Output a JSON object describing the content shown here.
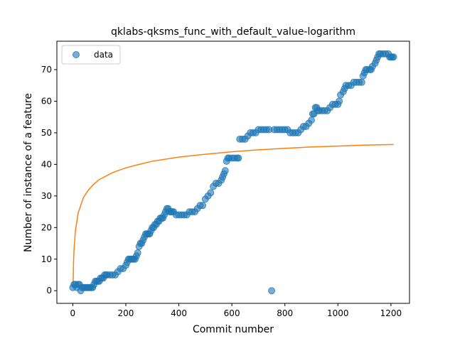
{
  "chart_data": {
    "type": "scatter",
    "title": "qklabs-qksms_func_with_default_value-logarithm",
    "xlabel": "Commit number",
    "ylabel": "Number of instance of a feature",
    "xlim": [
      -60,
      1270
    ],
    "ylim": [
      -4,
      79
    ],
    "xticks": [
      0,
      200,
      400,
      600,
      800,
      1000,
      1200
    ],
    "yticks": [
      0,
      10,
      20,
      30,
      40,
      50,
      60,
      70
    ],
    "legend": {
      "position": "top-left",
      "entries": [
        "data"
      ]
    },
    "series": [
      {
        "name": "data",
        "kind": "scatter",
        "color": "#1f77b4",
        "points": [
          [
            0,
            1
          ],
          [
            5,
            2
          ],
          [
            10,
            2
          ],
          [
            15,
            1
          ],
          [
            20,
            2
          ],
          [
            25,
            2
          ],
          [
            30,
            0
          ],
          [
            35,
            1
          ],
          [
            40,
            1
          ],
          [
            45,
            1
          ],
          [
            50,
            1
          ],
          [
            55,
            1
          ],
          [
            60,
            1
          ],
          [
            65,
            1
          ],
          [
            70,
            1
          ],
          [
            75,
            1
          ],
          [
            80,
            2
          ],
          [
            85,
            3
          ],
          [
            90,
            3
          ],
          [
            95,
            3
          ],
          [
            100,
            3
          ],
          [
            105,
            4
          ],
          [
            110,
            4
          ],
          [
            115,
            4
          ],
          [
            120,
            5
          ],
          [
            125,
            5
          ],
          [
            130,
            5
          ],
          [
            140,
            5
          ],
          [
            150,
            5
          ],
          [
            160,
            5
          ],
          [
            170,
            6
          ],
          [
            180,
            7
          ],
          [
            190,
            7
          ],
          [
            200,
            8
          ],
          [
            205,
            9
          ],
          [
            210,
            10
          ],
          [
            215,
            10
          ],
          [
            220,
            10
          ],
          [
            225,
            10
          ],
          [
            230,
            10
          ],
          [
            235,
            10
          ],
          [
            240,
            11
          ],
          [
            245,
            12
          ],
          [
            250,
            14
          ],
          [
            255,
            15
          ],
          [
            260,
            15
          ],
          [
            265,
            16
          ],
          [
            270,
            17
          ],
          [
            275,
            18
          ],
          [
            280,
            18
          ],
          [
            285,
            18
          ],
          [
            290,
            18
          ],
          [
            295,
            19
          ],
          [
            300,
            20
          ],
          [
            305,
            20
          ],
          [
            310,
            21
          ],
          [
            315,
            21
          ],
          [
            320,
            22
          ],
          [
            325,
            22
          ],
          [
            330,
            23
          ],
          [
            335,
            23
          ],
          [
            340,
            23
          ],
          [
            345,
            24
          ],
          [
            350,
            25
          ],
          [
            355,
            26
          ],
          [
            360,
            26
          ],
          [
            365,
            25
          ],
          [
            370,
            25
          ],
          [
            375,
            25
          ],
          [
            380,
            25
          ],
          [
            390,
            24
          ],
          [
            400,
            24
          ],
          [
            410,
            24
          ],
          [
            420,
            24
          ],
          [
            430,
            24
          ],
          [
            440,
            25
          ],
          [
            450,
            25
          ],
          [
            460,
            25
          ],
          [
            470,
            26
          ],
          [
            480,
            27
          ],
          [
            490,
            27
          ],
          [
            500,
            29
          ],
          [
            510,
            30
          ],
          [
            520,
            31
          ],
          [
            530,
            33
          ],
          [
            540,
            34
          ],
          [
            550,
            34
          ],
          [
            560,
            35
          ],
          [
            565,
            36
          ],
          [
            570,
            37
          ],
          [
            575,
            38
          ],
          [
            580,
            41
          ],
          [
            585,
            42
          ],
          [
            590,
            42
          ],
          [
            600,
            42
          ],
          [
            610,
            42
          ],
          [
            620,
            42
          ],
          [
            625,
            42
          ],
          [
            630,
            48
          ],
          [
            640,
            48
          ],
          [
            650,
            48
          ],
          [
            660,
            49
          ],
          [
            670,
            50
          ],
          [
            680,
            50
          ],
          [
            690,
            50
          ],
          [
            700,
            51
          ],
          [
            710,
            51
          ],
          [
            720,
            51
          ],
          [
            730,
            51
          ],
          [
            740,
            51
          ],
          [
            750,
            0
          ],
          [
            760,
            51
          ],
          [
            770,
            51
          ],
          [
            780,
            51
          ],
          [
            790,
            51
          ],
          [
            800,
            51
          ],
          [
            810,
            51
          ],
          [
            820,
            50
          ],
          [
            830,
            50
          ],
          [
            840,
            50
          ],
          [
            850,
            50
          ],
          [
            860,
            51
          ],
          [
            870,
            52
          ],
          [
            880,
            52
          ],
          [
            890,
            53
          ],
          [
            900,
            54
          ],
          [
            905,
            56
          ],
          [
            910,
            56
          ],
          [
            915,
            58
          ],
          [
            920,
            58
          ],
          [
            925,
            57
          ],
          [
            930,
            57
          ],
          [
            940,
            57
          ],
          [
            950,
            57
          ],
          [
            960,
            57
          ],
          [
            970,
            58
          ],
          [
            980,
            59
          ],
          [
            990,
            59
          ],
          [
            1000,
            59
          ],
          [
            1005,
            60
          ],
          [
            1010,
            62
          ],
          [
            1020,
            63
          ],
          [
            1025,
            64
          ],
          [
            1030,
            65
          ],
          [
            1040,
            65
          ],
          [
            1050,
            65
          ],
          [
            1060,
            66
          ],
          [
            1070,
            66
          ],
          [
            1080,
            66
          ],
          [
            1090,
            66
          ],
          [
            1095,
            68
          ],
          [
            1100,
            69
          ],
          [
            1105,
            70
          ],
          [
            1110,
            70
          ],
          [
            1120,
            70
          ],
          [
            1125,
            70
          ],
          [
            1130,
            71
          ],
          [
            1140,
            72
          ],
          [
            1145,
            73
          ],
          [
            1150,
            74
          ],
          [
            1155,
            75
          ],
          [
            1160,
            75
          ],
          [
            1170,
            75
          ],
          [
            1180,
            75
          ],
          [
            1190,
            75
          ],
          [
            1195,
            74
          ],
          [
            1200,
            74
          ],
          [
            1205,
            74
          ],
          [
            1210,
            74
          ]
        ]
      },
      {
        "kind": "line",
        "color": "#ff7f0e",
        "curve": "logarithmic fit",
        "points": [
          [
            1,
            1
          ],
          [
            3,
            9.5
          ],
          [
            5,
            13.5
          ],
          [
            10,
            19
          ],
          [
            20,
            24.5
          ],
          [
            40,
            29.5
          ],
          [
            60,
            32
          ],
          [
            80,
            33.8
          ],
          [
            100,
            35.2
          ],
          [
            150,
            37.4
          ],
          [
            200,
            38.9
          ],
          [
            250,
            40
          ],
          [
            300,
            41
          ],
          [
            400,
            42.3
          ],
          [
            500,
            43.2
          ],
          [
            600,
            44
          ],
          [
            700,
            44.6
          ],
          [
            800,
            45.1
          ],
          [
            900,
            45.5
          ],
          [
            1000,
            45.8
          ],
          [
            1100,
            46.1
          ],
          [
            1210,
            46.3
          ]
        ]
      }
    ]
  }
}
